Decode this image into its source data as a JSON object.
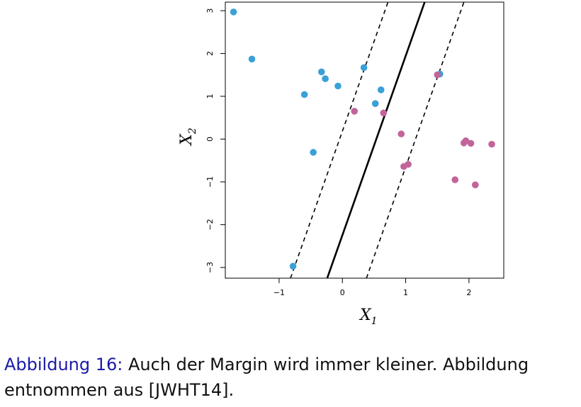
{
  "chart_data": {
    "type": "scatter",
    "xlabel": "X",
    "xlabel_sub": "1",
    "ylabel": "X",
    "ylabel_sub": "2",
    "xlim": [
      -1.85,
      2.55
    ],
    "ylim": [
      -3.25,
      3.2
    ],
    "xticks": [
      -1,
      0,
      1,
      2
    ],
    "yticks": [
      -3,
      -2,
      -1,
      0,
      1,
      2,
      3
    ],
    "grid": false,
    "series": [
      {
        "color": "#3aa0d8",
        "points": [
          [
            -1.72,
            2.97
          ],
          [
            -1.43,
            1.87
          ],
          [
            -0.6,
            1.04
          ],
          [
            -0.33,
            1.57
          ],
          [
            -0.27,
            1.41
          ],
          [
            -0.07,
            1.24
          ],
          [
            0.34,
            1.67
          ],
          [
            0.52,
            0.83
          ],
          [
            0.61,
            1.15
          ],
          [
            1.54,
            1.52
          ],
          [
            -0.46,
            -0.31
          ],
          [
            -0.78,
            -2.97
          ]
        ]
      },
      {
        "color": "#c2649a",
        "points": [
          [
            0.19,
            0.65
          ],
          [
            0.65,
            0.61
          ],
          [
            0.93,
            0.12
          ],
          [
            0.97,
            -0.64
          ],
          [
            1.04,
            -0.59
          ],
          [
            1.5,
            1.5
          ],
          [
            1.78,
            -0.95
          ],
          [
            1.92,
            -0.09
          ],
          [
            1.95,
            -0.04
          ],
          [
            2.03,
            -0.1
          ],
          [
            2.1,
            -1.07
          ],
          [
            2.36,
            -0.12
          ]
        ]
      }
    ],
    "lines": [
      {
        "style": "solid",
        "color": "#000000",
        "points": [
          [
            -0.24,
            -3.25
          ],
          [
            1.3,
            3.2
          ]
        ]
      },
      {
        "style": "dashed",
        "color": "#000000",
        "points": [
          [
            -0.82,
            -3.25
          ],
          [
            0.72,
            3.2
          ]
        ]
      },
      {
        "style": "dashed",
        "color": "#000000",
        "points": [
          [
            0.38,
            -3.25
          ],
          [
            1.92,
            3.2
          ]
        ]
      }
    ]
  },
  "caption": {
    "label": "Abbildung 16:",
    "text": " Auch der Margin wird immer kleiner. Abbildung entnommen aus [JWHT14]."
  }
}
